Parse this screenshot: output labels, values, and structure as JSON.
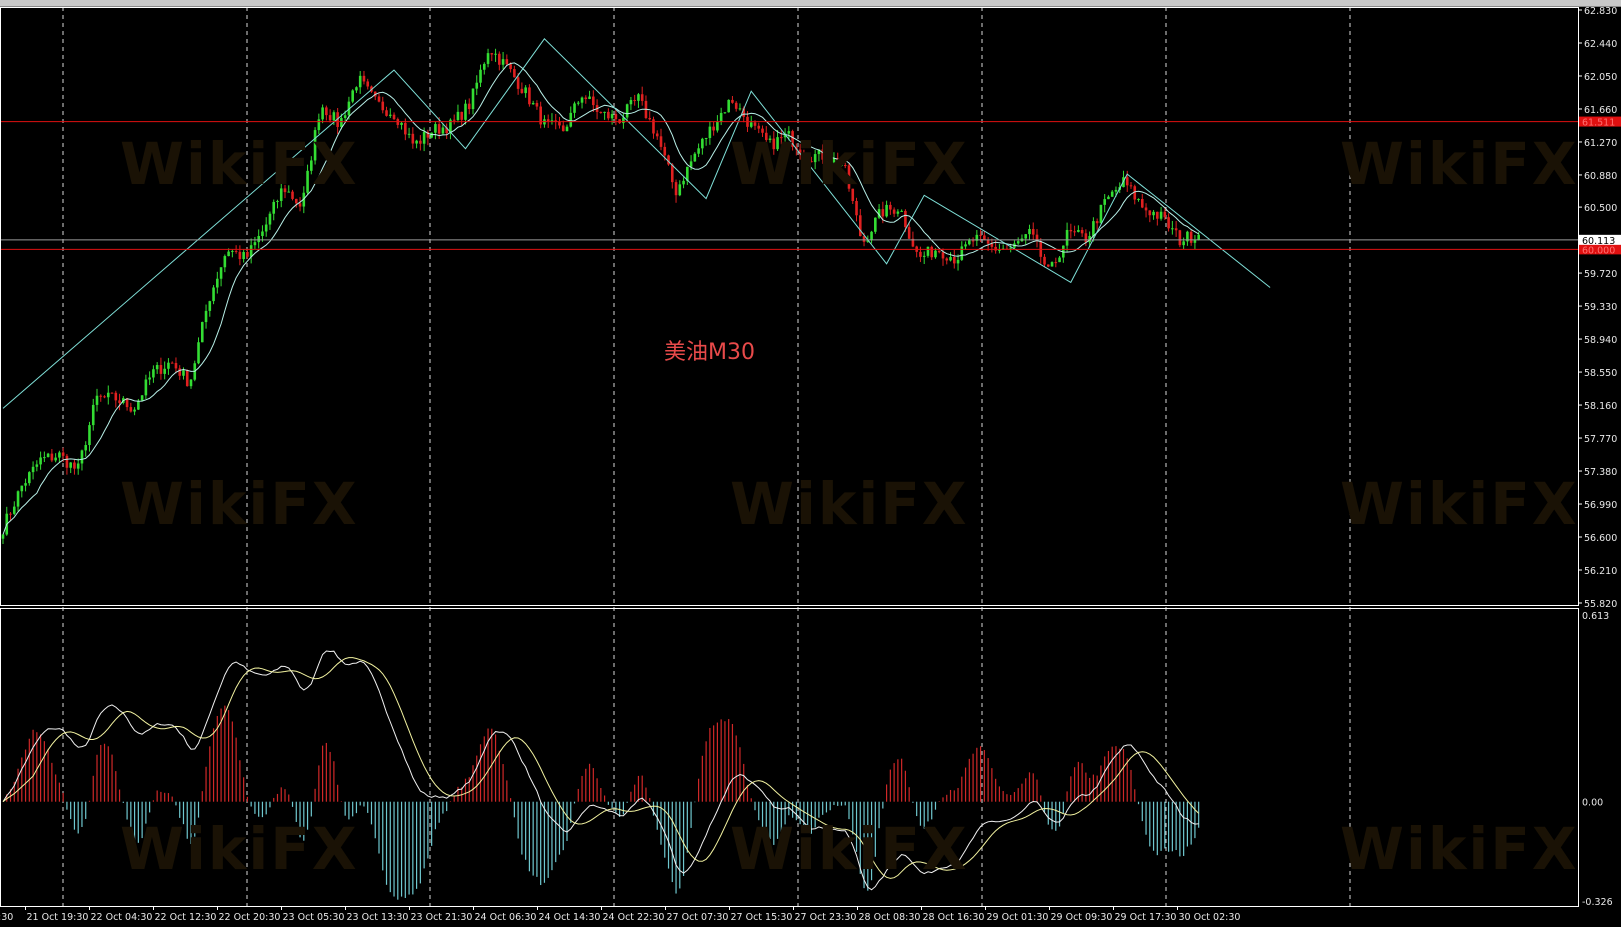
{
  "chart_data": {
    "type": "candlestick",
    "title": "美油M30",
    "title_color": "#e84a4a",
    "symbol_timeframe": "M30",
    "watermark": "WikiFX",
    "price_axis": {
      "ylim": [
        55.82,
        62.83
      ],
      "ticks": [
        "62.830",
        "62.440",
        "62.050",
        "61.660",
        "61.270",
        "60.880",
        "60.500",
        "60.113",
        "59.720",
        "59.330",
        "58.940",
        "58.550",
        "58.160",
        "57.770",
        "57.380",
        "56.990",
        "56.600",
        "56.210",
        "55.820"
      ]
    },
    "time_axis": {
      "leading_partial_label": ":30",
      "ticks": [
        "21 Oct 19:30",
        "22 Oct 04:30",
        "22 Oct 12:30",
        "22 Oct 20:30",
        "23 Oct 05:30",
        "23 Oct 13:30",
        "23 Oct 21:30",
        "24 Oct 06:30",
        "24 Oct 14:30",
        "24 Oct 22:30",
        "27 Oct 07:30",
        "27 Oct 15:30",
        "27 Oct 23:30",
        "28 Oct 08:30",
        "28 Oct 16:30",
        "29 Oct 01:30",
        "29 Oct 09:30",
        "29 Oct 17:30",
        "30 Oct 02:30"
      ]
    },
    "bar_count": 319,
    "close_path": [
      56.71,
      57.2,
      57.51,
      57.57,
      57.38,
      58.24,
      58.24,
      58.12,
      58.54,
      58.67,
      58.42,
      59.4,
      60.01,
      59.89,
      60.25,
      60.74,
      60.5,
      61.72,
      61.47,
      62.02,
      61.72,
      61.6,
      61.23,
      61.41,
      61.47,
      61.72,
      62.39,
      62.15,
      61.84,
      61.47,
      61.41,
      61.84,
      61.6,
      61.54,
      61.78,
      61.35,
      60.68,
      61.11,
      61.47,
      61.78,
      61.47,
      61.23,
      61.35,
      61.11,
      61.11,
      60.99,
      60.07,
      60.44,
      60.5,
      59.89,
      60.01,
      59.89,
      60.13,
      60.01,
      60.01,
      60.19,
      59.7,
      60.19,
      60.13,
      60.56,
      60.8,
      60.5,
      60.38,
      60.11,
      60.19
    ],
    "zigzag": [
      [
        0,
        58.12
      ],
      [
        104,
        62.12
      ],
      [
        123,
        61.19
      ],
      [
        144,
        62.49
      ],
      [
        187,
        60.6
      ],
      [
        199,
        61.87
      ],
      [
        235,
        59.83
      ],
      [
        245,
        60.64
      ],
      [
        284,
        59.61
      ],
      [
        299,
        60.89
      ],
      [
        337,
        59.55
      ]
    ],
    "horizontal_lines": [
      {
        "price": "61.511",
        "color": "#e01010"
      },
      {
        "price": "60.000",
        "color": "#e01010"
      },
      {
        "price": "60.113",
        "color": "#9a9a9a",
        "label_bg": "#ffffff",
        "label_fg": "#000000"
      }
    ],
    "bull_color": "#33dd33",
    "bear_color": "#e02020",
    "indicator": {
      "name": "MACD",
      "ylim": [
        -0.326,
        0.613
      ],
      "ticks": [
        "0.613",
        "0.00",
        "-0.326"
      ],
      "line_colors": [
        "#f0f0f0",
        "#f2f2a0"
      ],
      "hist_pos_color": "#d02828",
      "hist_neg_color": "#6fc8d0"
    },
    "grid": "vertical-dashed"
  }
}
